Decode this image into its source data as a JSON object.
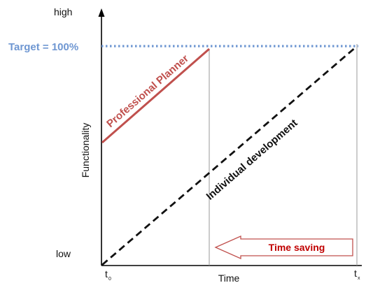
{
  "axes": {
    "y_high_label": "high",
    "y_low_label": "low",
    "y_title": "Functionality",
    "x_title": "Time",
    "x_start_label": "t",
    "x_start_sub": "0",
    "x_end_label": "t",
    "x_end_sub": "x"
  },
  "target": {
    "label": "Target = 100%",
    "color": "#6f97d2"
  },
  "professional_planner": {
    "label": "Professional Planner",
    "color": "#c0504d"
  },
  "individual_development": {
    "label": "Individual development",
    "color": "#111111"
  },
  "time_saving": {
    "label": "Time saving",
    "arrow_color": "#c0504d",
    "text_color": "#c00000"
  }
}
